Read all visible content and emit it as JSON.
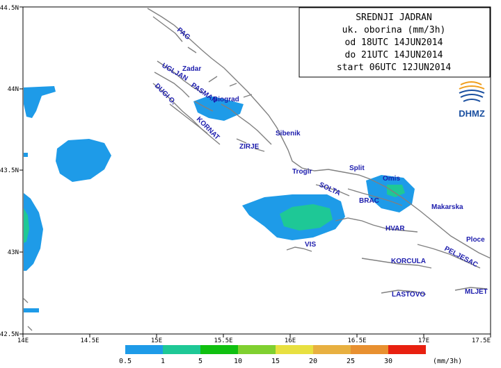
{
  "title_box": {
    "lines": [
      "SREDNJI JADRAN",
      "uk. oborina (mm/3h)",
      "od 18UTC 14JUN2014",
      "do 21UTC 14JUN2014",
      "start 06UTC 12JUN2014"
    ]
  },
  "logo": {
    "text": "DHMZ",
    "colors": [
      "#f0a020",
      "#1a4fa0"
    ]
  },
  "axes": {
    "x_ticks": [
      "14E",
      "14.5E",
      "15E",
      "15.5E",
      "16E",
      "16.5E",
      "17E",
      "17.5E"
    ],
    "y_ticks": [
      "44.5N",
      "44N",
      "43.5N",
      "43N",
      "42.5N"
    ],
    "lon_range": [
      14,
      17.5
    ],
    "lat_range": [
      42.5,
      44.5
    ]
  },
  "places": [
    "PAG",
    "Zadar",
    "UGLJAN",
    "PASMAN",
    "Biograd",
    "DUGI O.",
    "KORNAT",
    "Sibenik",
    "ZIRJE",
    "Trogir",
    "Split",
    "Omis",
    "SOLTA",
    "BRAC",
    "Makarska",
    "HVAR",
    "VIS",
    "Ploce",
    "KORCULA",
    "PELJESAC",
    "LASTOVO",
    "MLJET"
  ],
  "legend": {
    "thresholds": [
      "0.5",
      "1",
      "5",
      "10",
      "15",
      "20",
      "25",
      "30"
    ],
    "unit": "(mm/3h)",
    "colors": [
      "#1e9be8",
      "#1ec896",
      "#10c010",
      "#80d030",
      "#e8e040",
      "#e8b040",
      "#e89030",
      "#e82010"
    ]
  },
  "precip_colors": {
    "light": "#1e9be8",
    "moderate": "#1ec896"
  }
}
